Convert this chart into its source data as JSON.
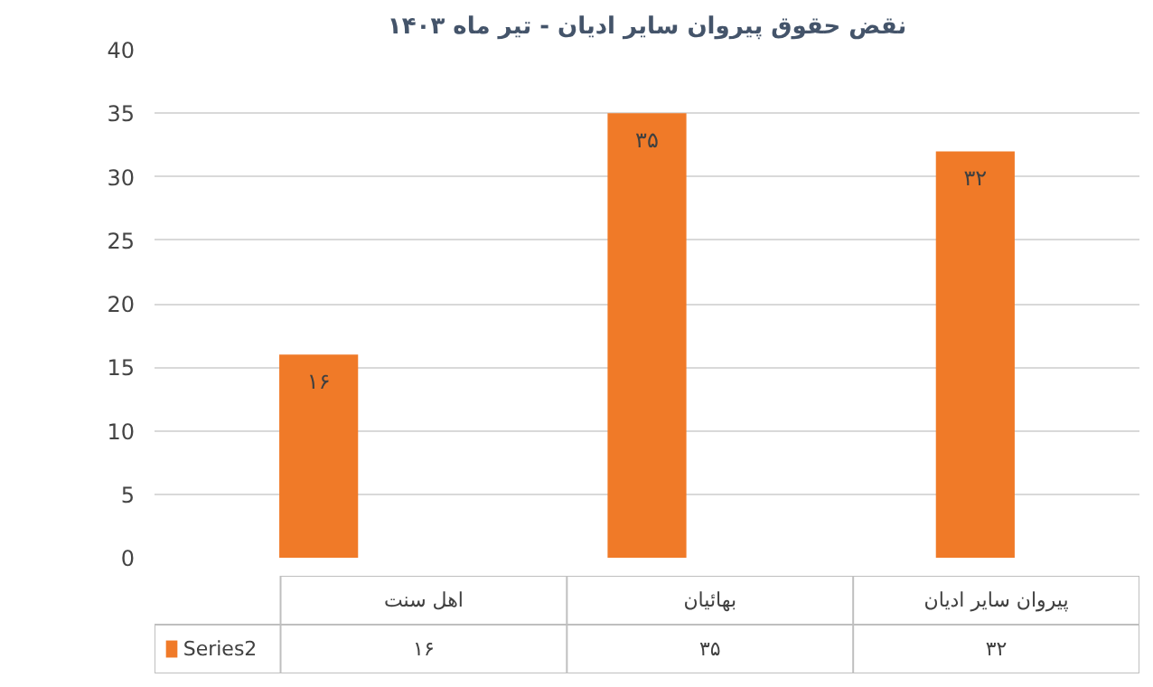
{
  "chart_data": {
    "type": "bar",
    "title": "نقض حقوق پیروان سایر ادیان - تیر ماه ۱۴۰۳",
    "categories": [
      "اهل سنت",
      "بهائیان",
      "پیروان سایر ادیان"
    ],
    "series": [
      {
        "name": "Series2",
        "color": "#f07a28",
        "values": [
          16,
          35,
          32
        ],
        "value_labels": [
          "۱۶",
          "۳۵",
          "۳۲"
        ]
      }
    ],
    "ylim": [
      0,
      40
    ],
    "yticks": [
      0,
      5,
      10,
      15,
      20,
      25,
      30,
      35,
      40
    ],
    "grid": "y"
  }
}
